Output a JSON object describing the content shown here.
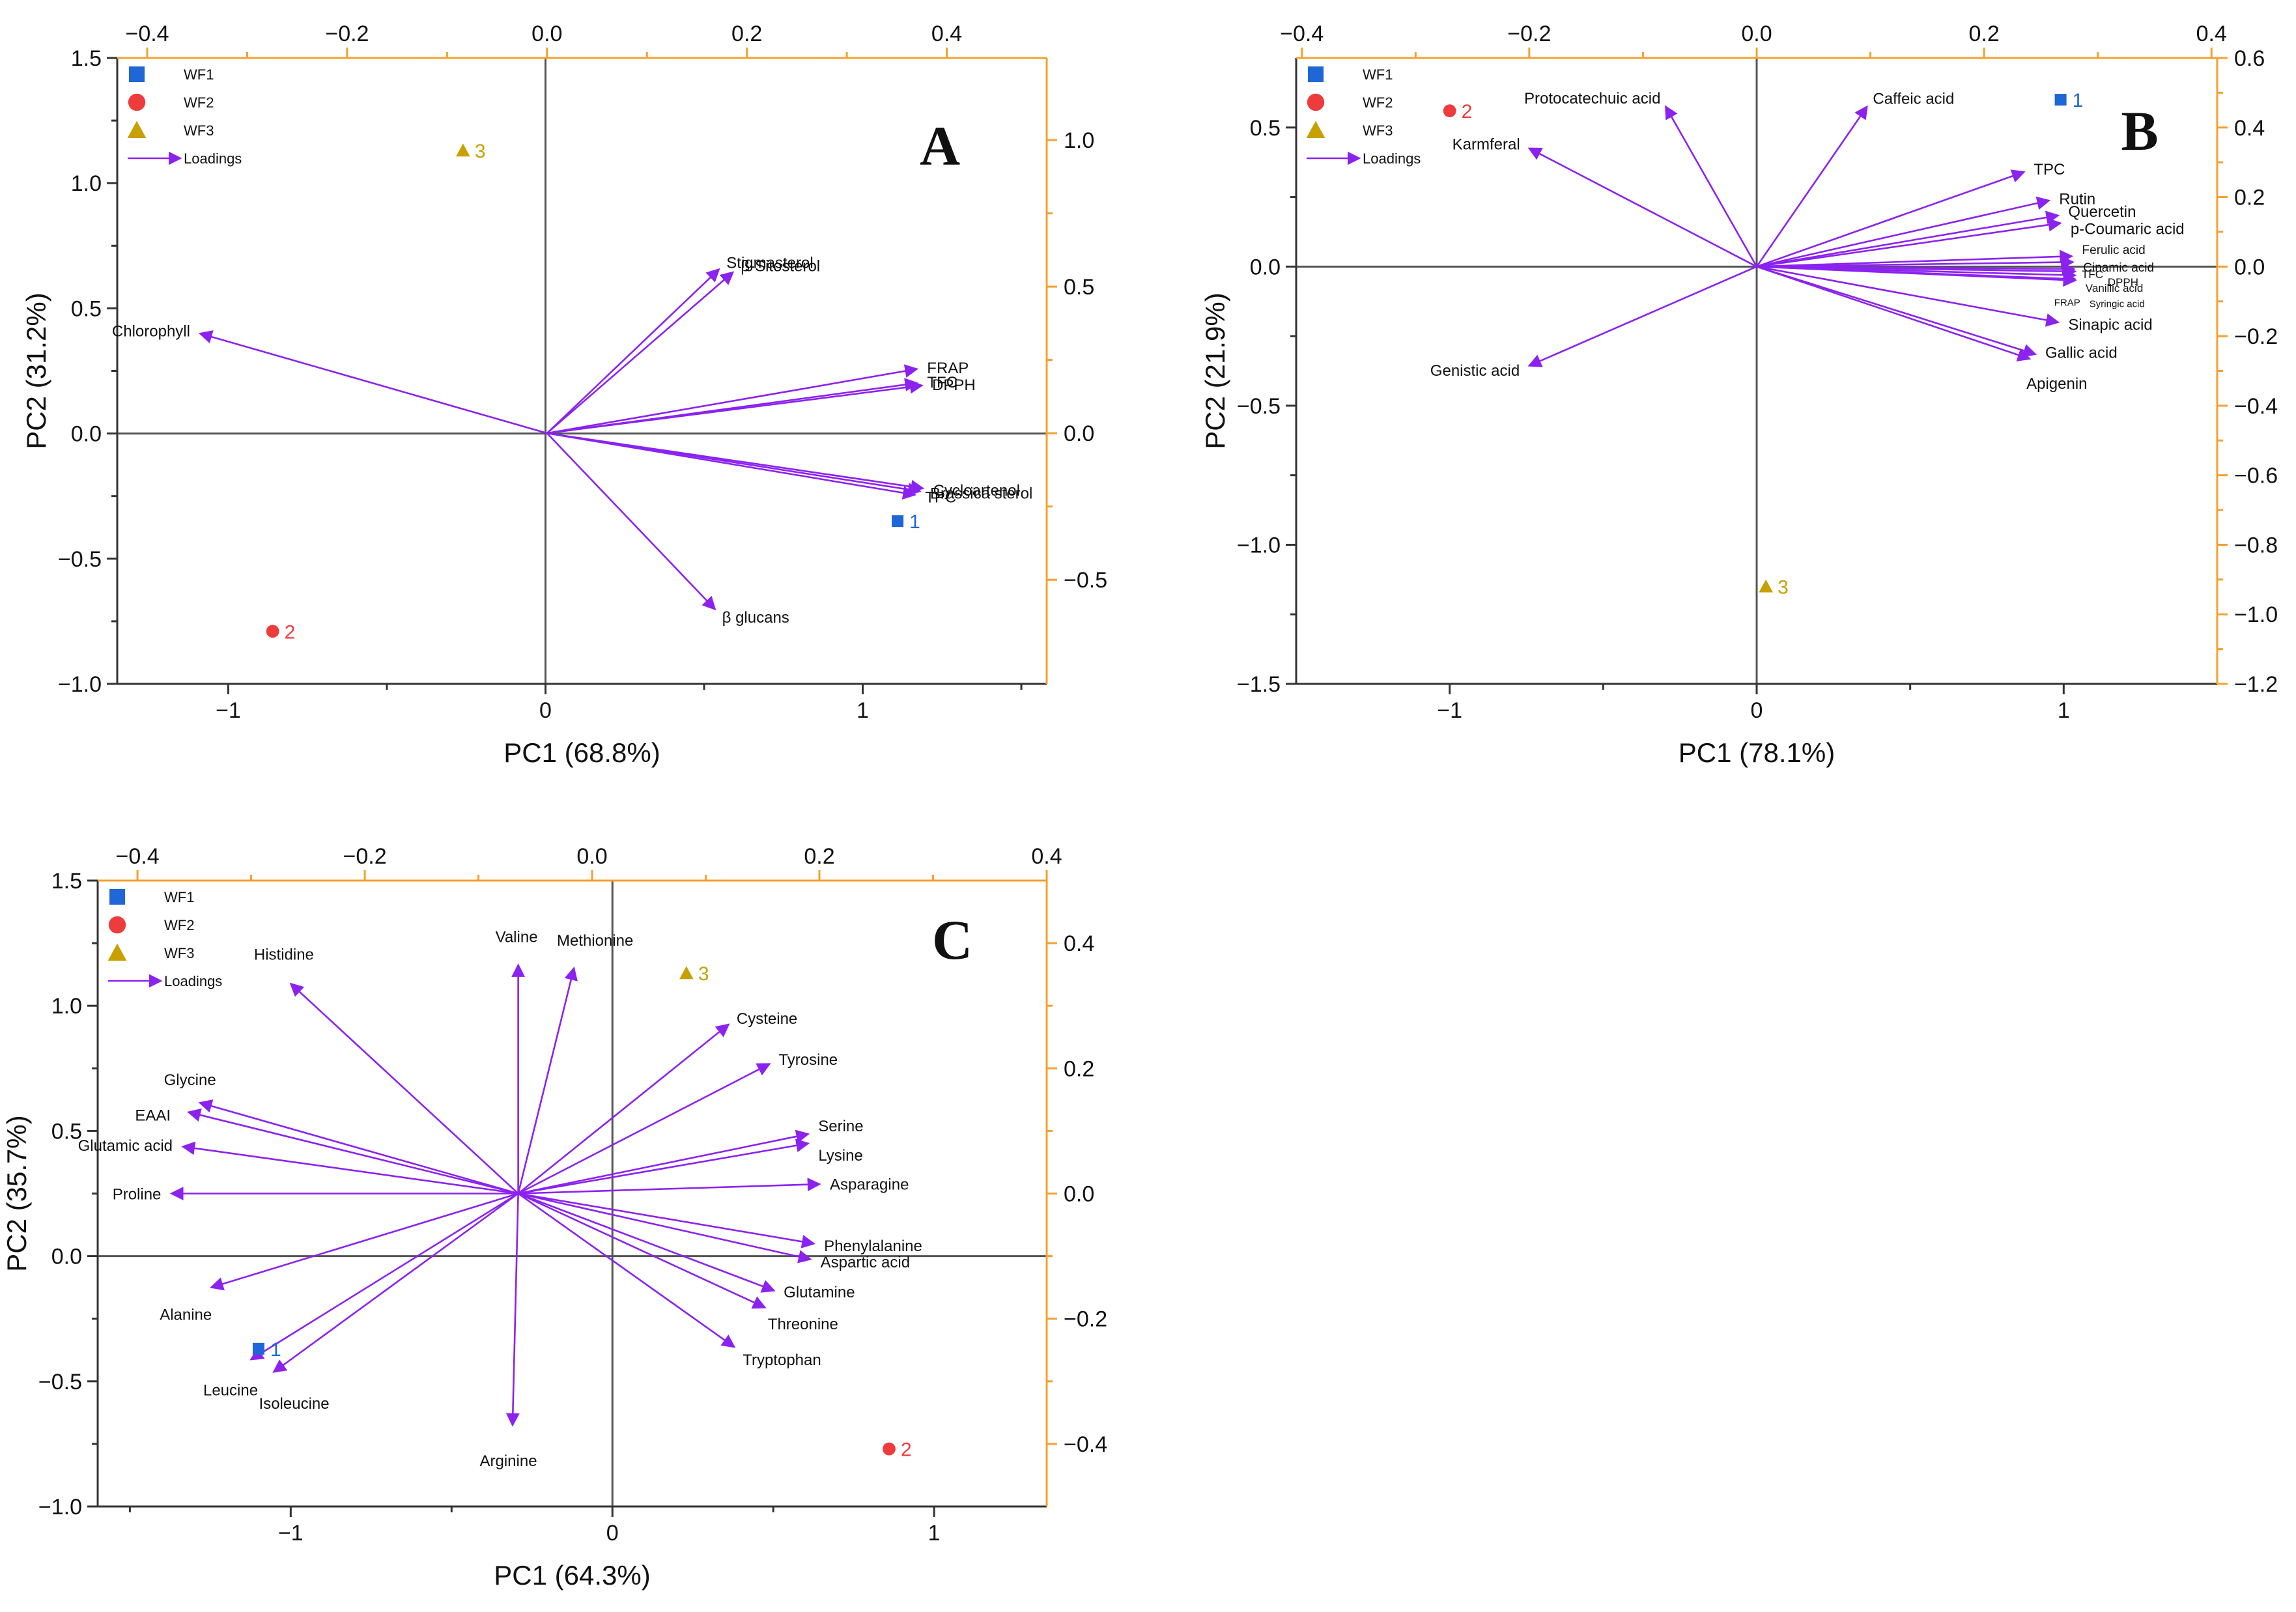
{
  "colors": {
    "axis": "#333333",
    "secondary_axis": "#f5a030",
    "loading_arrow": "#8b22f0",
    "wf1": "#1f66d6",
    "wf2": "#ee3b3b",
    "wf3": "#c8a000"
  },
  "chart_data": [
    {
      "type": "scatter",
      "panel": "A",
      "title": "A",
      "xlabel": "PC1 (68.8%)",
      "ylabel": "PC2 (31.2%)",
      "xlim": [
        -1.35,
        1.58
      ],
      "ylim": [
        -1.0,
        1.5
      ],
      "xticks": [
        -1,
        0,
        1
      ],
      "yticks": [
        -1.0,
        -0.5,
        0.0,
        0.5,
        1.0,
        1.5
      ],
      "secondary_xlim": [
        -0.43,
        0.5
      ],
      "secondary_ylim": [
        -0.855,
        1.28
      ],
      "secondary_xticks": [
        -0.4,
        -0.2,
        0.0,
        0.2,
        0.4
      ],
      "secondary_yticks": [
        -0.5,
        0.0,
        0.5,
        1.0
      ],
      "legend": {
        "position": "top-left",
        "entries": [
          "WF1",
          "WF2",
          "WF3",
          "Loadings"
        ]
      },
      "scores": [
        {
          "group": "WF1",
          "label": "1",
          "x": 1.11,
          "y": -0.35
        },
        {
          "group": "WF2",
          "label": "2",
          "x": -0.86,
          "y": -0.79
        },
        {
          "group": "WF3",
          "label": "3",
          "x": -0.26,
          "y": 1.13
        }
      ],
      "loadings": [
        {
          "name": "Chlorophyll",
          "x": -0.347,
          "y": 0.34
        },
        {
          "name": "Stigmasterol",
          "x": 0.172,
          "y": 0.559
        },
        {
          "name": "β-Sitosterol",
          "x": 0.186,
          "y": 0.549
        },
        {
          "name": "FRAP",
          "x": 0.37,
          "y": 0.219
        },
        {
          "name": "TFC",
          "x": 0.37,
          "y": 0.171
        },
        {
          "name": "DPPH",
          "x": 0.375,
          "y": 0.163
        },
        {
          "name": "Cycloartenol",
          "x": 0.376,
          "y": -0.188
        },
        {
          "name": "Brassica sterol",
          "x": 0.373,
          "y": -0.198
        },
        {
          "name": "TPC",
          "x": 0.368,
          "y": -0.21
        },
        {
          "name": "β glucans",
          "x": 0.168,
          "y": -0.6
        }
      ]
    },
    {
      "type": "scatter",
      "panel": "B",
      "title": "B",
      "xlabel": "PC1 (78.1%)",
      "ylabel": "PC2 (21.9%)",
      "xlim": [
        -1.5,
        1.5
      ],
      "ylim": [
        -1.5,
        0.75
      ],
      "xticks": [
        -1,
        0,
        1
      ],
      "yticks": [
        -1.5,
        -1.0,
        -0.5,
        0.0,
        0.5
      ],
      "secondary_xlim": [
        -0.405,
        0.405
      ],
      "secondary_ylim": [
        -1.2,
        0.6
      ],
      "secondary_xticks": [
        -0.4,
        -0.2,
        0.0,
        0.2,
        0.4
      ],
      "secondary_yticks": [
        -1.2,
        -1.0,
        -0.8,
        -0.6,
        -0.4,
        -0.2,
        0.0,
        0.2,
        0.4,
        0.6
      ],
      "legend": {
        "position": "top-left",
        "entries": [
          "WF1",
          "WF2",
          "WF3",
          "Loadings"
        ]
      },
      "scores": [
        {
          "group": "WF1",
          "label": "1",
          "x": 0.99,
          "y": 0.6
        },
        {
          "group": "WF2",
          "label": "2",
          "x": -1.0,
          "y": 0.56
        },
        {
          "group": "WF3",
          "label": "3",
          "x": 0.03,
          "y": -1.15
        }
      ],
      "loadings": [
        {
          "name": "Protocatechuic acid",
          "x": -0.08,
          "y": 0.46
        },
        {
          "name": "Caffeic acid",
          "x": 0.097,
          "y": 0.46
        },
        {
          "name": "Karmferal",
          "x": -0.2,
          "y": 0.34
        },
        {
          "name": "TPC",
          "x": 0.235,
          "y": 0.272
        },
        {
          "name": "Rutin",
          "x": 0.257,
          "y": 0.19
        },
        {
          "name": "Quercetin",
          "x": 0.265,
          "y": 0.147
        },
        {
          "name": "p-Coumaric acid",
          "x": 0.267,
          "y": 0.125
        },
        {
          "name": "Ferulic acid",
          "x": 0.277,
          "y": 0.03
        },
        {
          "name": "Cinamic acid",
          "x": 0.278,
          "y": 0.013
        },
        {
          "name": "TFC",
          "x": 0.279,
          "y": -0.007
        },
        {
          "name": "DPPH",
          "x": 0.28,
          "y": -0.014
        },
        {
          "name": "Vanillic acid",
          "x": 0.28,
          "y": -0.025
        },
        {
          "name": "FRAP",
          "x": 0.28,
          "y": -0.036
        },
        {
          "name": "Syringic acid",
          "x": 0.28,
          "y": -0.04
        },
        {
          "name": "Sinapic acid",
          "x": 0.265,
          "y": -0.16
        },
        {
          "name": "Gallic acid",
          "x": 0.245,
          "y": -0.252
        },
        {
          "name": "Apigenin",
          "x": 0.24,
          "y": -0.265
        },
        {
          "name": "Genistic acid",
          "x": -0.2,
          "y": -0.285
        }
      ]
    },
    {
      "type": "scatter",
      "panel": "C",
      "title": "C",
      "xlabel": "PC1 (64.3%)",
      "ylabel": "PC2 (35.7%)",
      "xlim": [
        -1.6,
        1.35
      ],
      "ylim": [
        -1.0,
        1.5
      ],
      "xticks": [
        -1,
        0,
        1
      ],
      "yticks": [
        -1.0,
        -0.5,
        0.0,
        0.5,
        1.0,
        1.5
      ],
      "secondary_xlim": [
        -0.435,
        0.4
      ],
      "secondary_ylim": [
        -0.5,
        0.5
      ],
      "secondary_xticks": [
        -0.4,
        -0.2,
        0.0,
        0.2,
        0.4
      ],
      "secondary_yticks": [
        -0.4,
        -0.2,
        0.0,
        0.2,
        0.4
      ],
      "loading_origin": [
        -0.065,
        0.0
      ],
      "legend": {
        "position": "top-left",
        "entries": [
          "WF1",
          "WF2",
          "WF3",
          "Loadings"
        ]
      },
      "scores": [
        {
          "group": "WF1",
          "label": "1",
          "x": -1.1,
          "y": -0.37
        },
        {
          "group": "WF2",
          "label": "2",
          "x": 0.86,
          "y": -0.77
        },
        {
          "group": "WF3",
          "label": "3",
          "x": 0.23,
          "y": 1.13
        }
      ],
      "loadings": [
        {
          "name": "Histidine",
          "x": -0.265,
          "y": 0.335
        },
        {
          "name": "Valine",
          "x": -0.065,
          "y": 0.365
        },
        {
          "name": "Methionine",
          "x": -0.016,
          "y": 0.36
        },
        {
          "name": "Cysteine",
          "x": 0.12,
          "y": 0.27
        },
        {
          "name": "Tyrosine",
          "x": 0.156,
          "y": 0.207
        },
        {
          "name": "Serine",
          "x": 0.19,
          "y": 0.095
        },
        {
          "name": "Lysine",
          "x": 0.19,
          "y": 0.08
        },
        {
          "name": "Asparagine",
          "x": 0.2,
          "y": 0.015
        },
        {
          "name": "Phenylalanine",
          "x": 0.195,
          "y": -0.08
        },
        {
          "name": "Aspartic acid",
          "x": 0.192,
          "y": -0.105
        },
        {
          "name": "Glutamine",
          "x": 0.16,
          "y": -0.155
        },
        {
          "name": "Threonine",
          "x": 0.152,
          "y": -0.182
        },
        {
          "name": "Tryptophan",
          "x": 0.125,
          "y": -0.245
        },
        {
          "name": "Arginine",
          "x": -0.07,
          "y": -0.37
        },
        {
          "name": "Leucine",
          "x": -0.3,
          "y": -0.265
        },
        {
          "name": "Isoleucine",
          "x": -0.28,
          "y": -0.285
        },
        {
          "name": "Alanine",
          "x": -0.335,
          "y": -0.15
        },
        {
          "name": "Proline",
          "x": -0.37,
          "y": 0.0
        },
        {
          "name": "Glutamic acid",
          "x": -0.36,
          "y": 0.075
        },
        {
          "name": "EAAI",
          "x": -0.355,
          "y": 0.13
        },
        {
          "name": "Glycine",
          "x": -0.345,
          "y": 0.145
        }
      ]
    }
  ]
}
